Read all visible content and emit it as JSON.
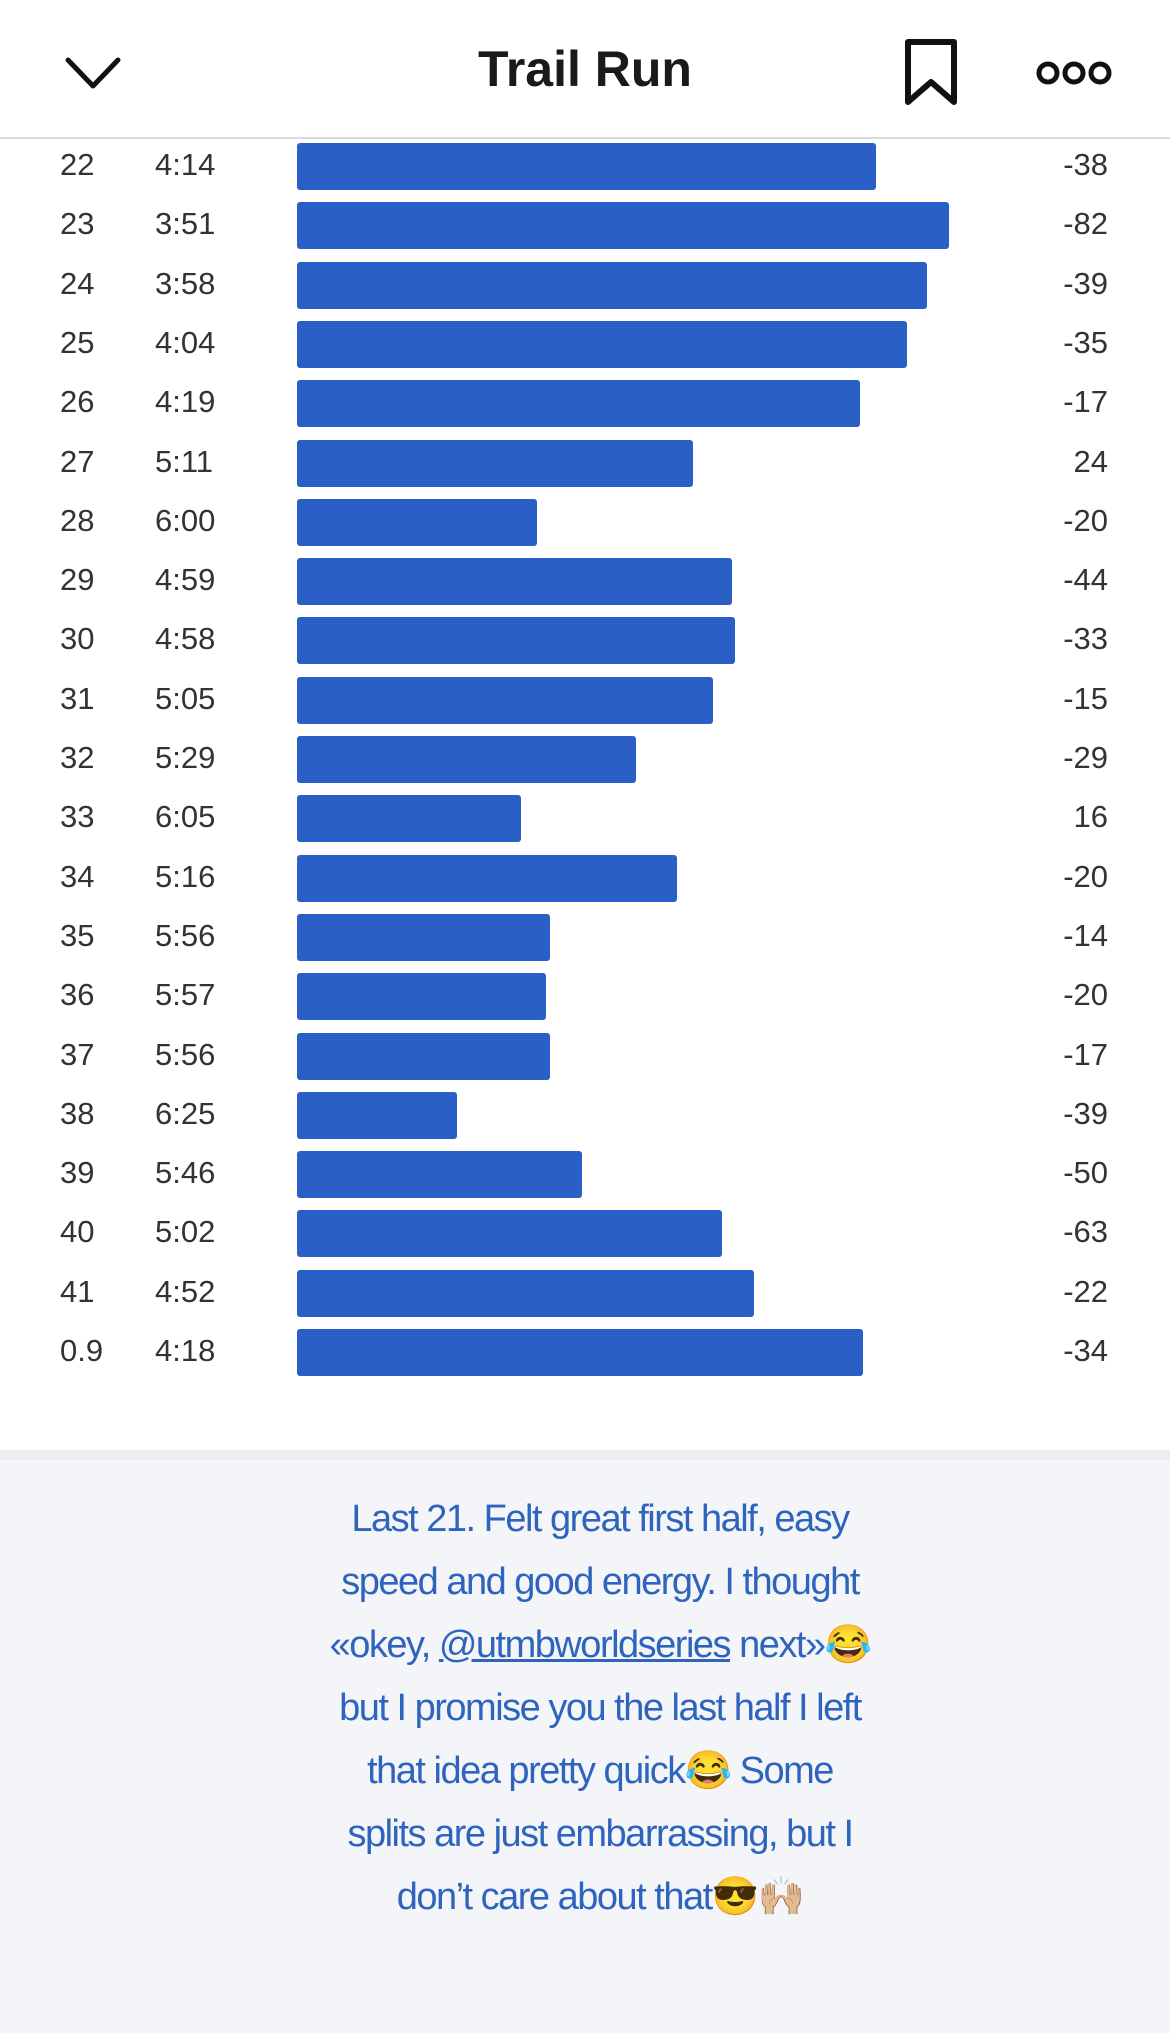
{
  "header": {
    "title": "Trail Run",
    "icons": {
      "back": "chevron-down-icon",
      "bookmark": "bookmark-icon",
      "more": "more-icon"
    }
  },
  "chart_data": {
    "type": "bar",
    "orientation": "horizontal",
    "categories": [
      "22",
      "23",
      "24",
      "25",
      "26",
      "27",
      "28",
      "29",
      "30",
      "31",
      "32",
      "33",
      "34",
      "35",
      "36",
      "37",
      "38",
      "39",
      "40",
      "41",
      "0.9"
    ],
    "pace_labels": [
      "4:14",
      "3:51",
      "3:58",
      "4:04",
      "4:19",
      "5:11",
      "6:00",
      "4:59",
      "4:58",
      "5:05",
      "5:29",
      "6:05",
      "5:16",
      "5:56",
      "5:57",
      "5:56",
      "6:25",
      "5:46",
      "5:02",
      "4:52",
      "4:18"
    ],
    "elevation": [
      "-38",
      "-82",
      "-39",
      "-35",
      "-17",
      "24",
      "-20",
      "-44",
      "-33",
      "-15",
      "-29",
      "16",
      "-20",
      "-14",
      "-20",
      "-17",
      "-39",
      "-50",
      "-63",
      "-22",
      "-34"
    ],
    "bar_color": "#2a5fc6"
  },
  "caption": {
    "lines": [
      "Last 21. Felt great first half, easy",
      "speed and good energy. I thought",
      "«okey, ",
      "but I promise you the last half I left",
      "that idea pretty quick😂 Some",
      "splits are just embarrassing, but I",
      "don’t care about that😎🙌🏼"
    ],
    "mention": "@utmbworldseries",
    "after_mention": " next»😂",
    "text_color": "#2e64be"
  }
}
